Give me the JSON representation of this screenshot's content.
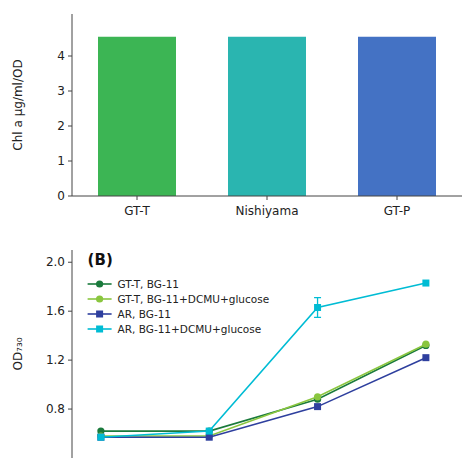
{
  "chart_data": [
    {
      "type": "bar",
      "categories": [
        "GT-T",
        "Nishiyama",
        "GT-P"
      ],
      "values": [
        4.55,
        4.55,
        4.55
      ],
      "colors": [
        "#3cb554",
        "#2ab5b0",
        "#4472c4"
      ],
      "y_label": "Chl a μg/ml/OD",
      "ylim": [
        0,
        5.2
      ],
      "yticks": [
        0,
        1,
        2,
        3,
        4
      ],
      "grid": false
    },
    {
      "type": "line",
      "title": "(B)",
      "x": [
        0,
        3,
        6,
        9
      ],
      "xlim": [
        -0.8,
        10.0
      ],
      "series": [
        {
          "name": "GT-T, BG-11",
          "color": "#1a7a3c",
          "marker": "circle",
          "line_style": "solid",
          "values": [
            0.62,
            0.62,
            0.88,
            1.32
          ]
        },
        {
          "name": "GT-T, BG-11+DCMU+glucose",
          "color": "#8ac63f",
          "marker": "circle",
          "line_style": "solid",
          "values": [
            0.58,
            0.58,
            0.9,
            1.33
          ]
        },
        {
          "name": "AR, BG-11",
          "color": "#2e3f9e",
          "marker": "square",
          "line_style": "solid",
          "values": [
            0.57,
            0.57,
            0.82,
            1.22
          ]
        },
        {
          "name": "AR, BG-11+DCMU+glucose",
          "color": "#00bcd4",
          "marker": "square",
          "line_style": "solid",
          "values": [
            0.57,
            0.62,
            1.63,
            1.83
          ],
          "errors": [
            null,
            null,
            0.08,
            null
          ]
        }
      ],
      "y_label": "OD₇₃₀",
      "ylim": [
        0.4,
        2.1
      ],
      "yticks": [
        0.8,
        1.2,
        1.6,
        {
          "value": 2.0,
          "label": "2.0"
        }
      ],
      "tick_labels": "y",
      "legend": "upper left",
      "grid": false
    }
  ]
}
